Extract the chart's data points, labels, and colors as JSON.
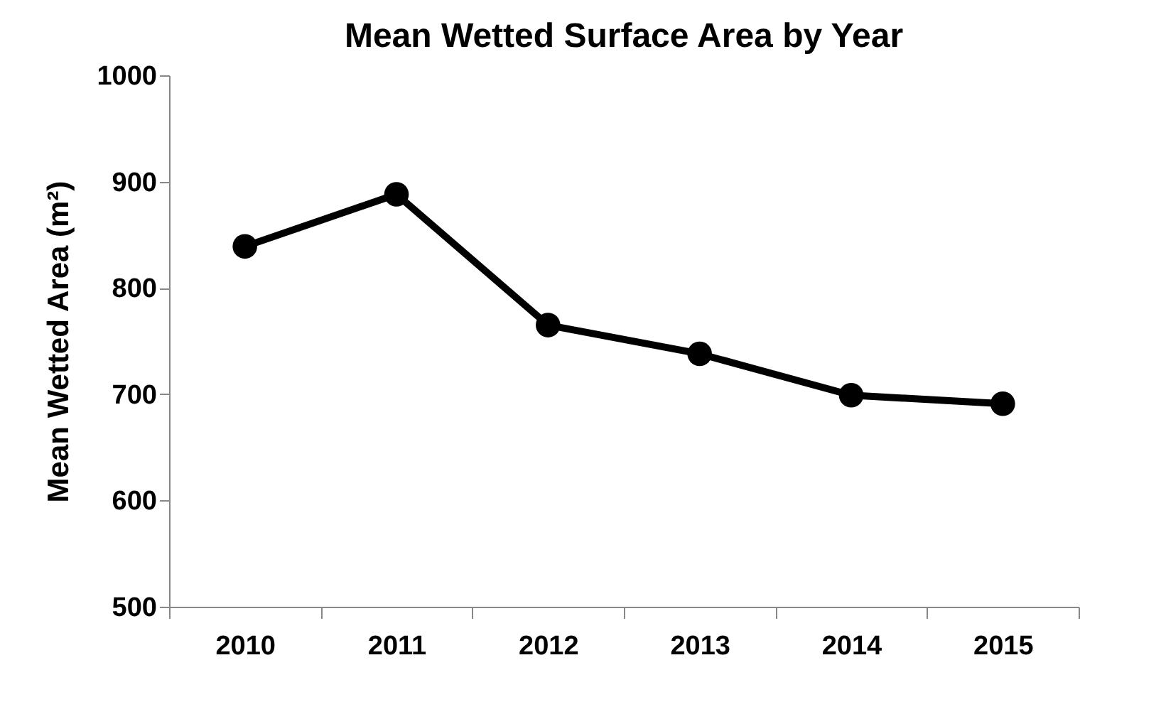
{
  "chart_data": {
    "type": "line",
    "title": "Mean Wetted Surface Area by Year",
    "ylabel": "Mean Wetted Area (m²)",
    "categories": [
      "2010",
      "2011",
      "2012",
      "2013",
      "2014",
      "2015"
    ],
    "series": [
      {
        "color": "#000000",
        "values": [
          839,
          888,
          765,
          738,
          699,
          691
        ]
      }
    ],
    "ylim": [
      500,
      1000
    ],
    "yticks": [
      500,
      600,
      700,
      800,
      900,
      1000
    ],
    "marker": "circle",
    "line_style": "solid"
  }
}
